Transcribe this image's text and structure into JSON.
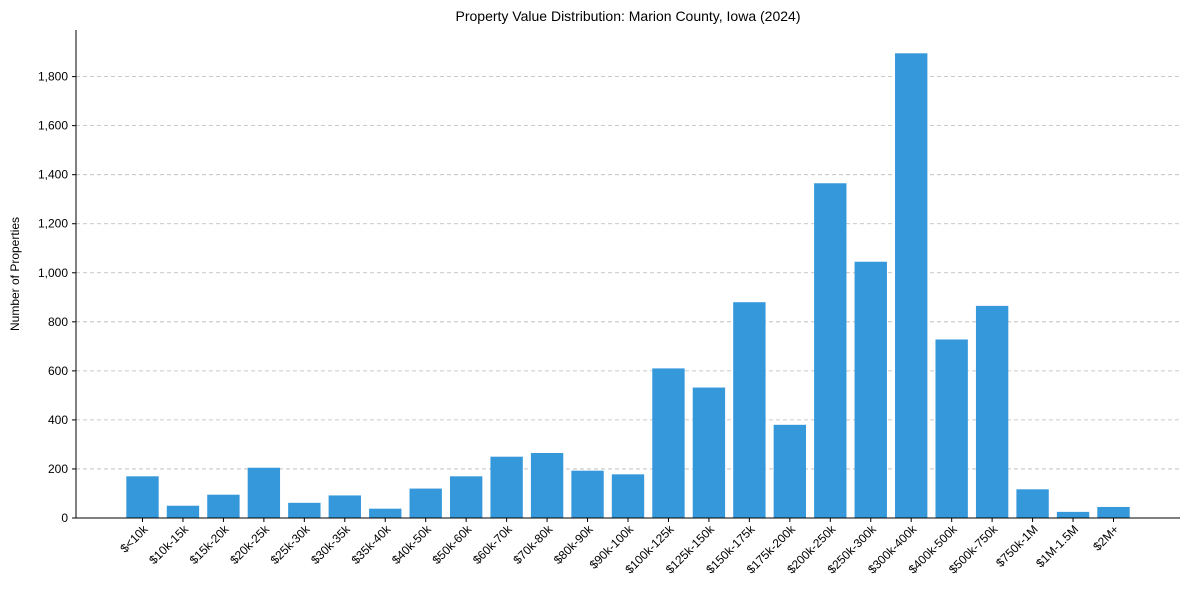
{
  "chart_data": {
    "type": "bar",
    "title": "Property Value Distribution: Marion County, Iowa (2024)",
    "xlabel": "",
    "ylabel": "Number of Properties",
    "ylim": [
      0,
      1990
    ],
    "yticks": [
      0,
      200,
      400,
      600,
      800,
      1000,
      1200,
      1400,
      1600,
      1800
    ],
    "ytick_labels": [
      "0",
      "200",
      "400",
      "600",
      "800",
      "1,000",
      "1,200",
      "1,400",
      "1,600",
      "1,800"
    ],
    "grid": "y-dashed",
    "bar_color": "#3498db",
    "categories": [
      "$<10k",
      "$10k-15k",
      "$15k-20k",
      "$20k-25k",
      "$25k-30k",
      "$30k-35k",
      "$35k-40k",
      "$40k-50k",
      "$50k-60k",
      "$60k-70k",
      "$70k-80k",
      "$80k-90k",
      "$90k-100k",
      "$100k-125k",
      "$125k-150k",
      "$150k-175k",
      "$175k-200k",
      "$200k-250k",
      "$250k-300k",
      "$300k-400k",
      "$400k-500k",
      "$500k-750k",
      "$750k-1M",
      "$1M-1.5M",
      "$2M+"
    ],
    "values": [
      170,
      50,
      95,
      205,
      62,
      92,
      38,
      120,
      170,
      250,
      265,
      193,
      178,
      610,
      532,
      880,
      380,
      1365,
      1045,
      1895,
      728,
      865,
      117,
      25,
      45
    ]
  }
}
